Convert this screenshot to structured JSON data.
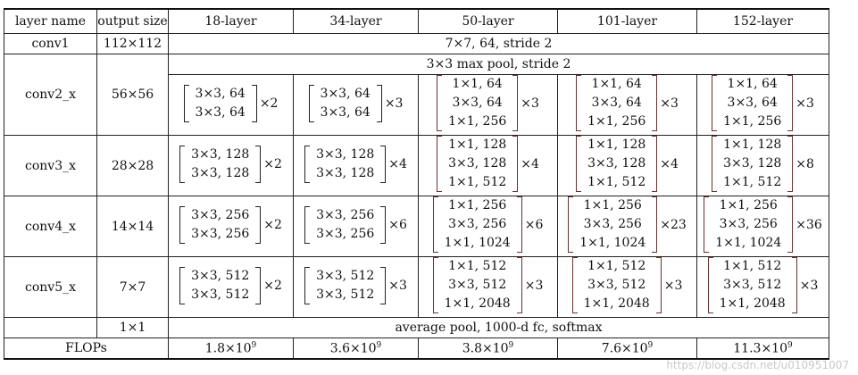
{
  "headers": [
    "layer name",
    "output size",
    "18-layer",
    "34-layer",
    "50-layer",
    "101-layer",
    "152-layer"
  ],
  "conv1": {
    "name": "conv1",
    "size": "112×112",
    "spec": "7×7, 64, stride 2"
  },
  "maxpool": "3×3 max pool, stride 2",
  "blocks": [
    {
      "name": "conv2_x",
      "size": "56×56",
      "cells": [
        {
          "lines": [
            "3×3, 64",
            "3×3, 64"
          ],
          "mult": "×2"
        },
        {
          "lines": [
            "3×3, 64",
            "3×3, 64"
          ],
          "mult": "×3"
        },
        {
          "lines": [
            "1×1, 64",
            "3×3, 64",
            "1×1, 256"
          ],
          "mult": "×3"
        },
        {
          "lines": [
            "1×1, 64",
            "3×3, 64",
            "1×1, 256"
          ],
          "mult": "×3"
        },
        {
          "lines": [
            "1×1, 64",
            "3×3, 64",
            "1×1, 256"
          ],
          "mult": "×3"
        }
      ]
    },
    {
      "name": "conv3_x",
      "size": "28×28",
      "cells": [
        {
          "lines": [
            "3×3, 128",
            "3×3, 128"
          ],
          "mult": "×2"
        },
        {
          "lines": [
            "3×3, 128",
            "3×3, 128"
          ],
          "mult": "×4"
        },
        {
          "lines": [
            "1×1, 128",
            "3×3, 128",
            "1×1, 512"
          ],
          "mult": "×4"
        },
        {
          "lines": [
            "1×1, 128",
            "3×3, 128",
            "1×1, 512"
          ],
          "mult": "×4"
        },
        {
          "lines": [
            "1×1, 128",
            "3×3, 128",
            "1×1, 512"
          ],
          "mult": "×8"
        }
      ]
    },
    {
      "name": "conv4_x",
      "size": "14×14",
      "cells": [
        {
          "lines": [
            "3×3, 256",
            "3×3, 256"
          ],
          "mult": "×2"
        },
        {
          "lines": [
            "3×3, 256",
            "3×3, 256"
          ],
          "mult": "×6"
        },
        {
          "lines": [
            "1×1, 256",
            "3×3, 256",
            "1×1, 1024"
          ],
          "mult": "×6"
        },
        {
          "lines": [
            "1×1, 256",
            "3×3, 256",
            "1×1, 1024"
          ],
          "mult": "×23"
        },
        {
          "lines": [
            "1×1, 256",
            "3×3, 256",
            "1×1, 1024"
          ],
          "mult": "×36"
        }
      ]
    },
    {
      "name": "conv5_x",
      "size": "7×7",
      "cells": [
        {
          "lines": [
            "3×3, 512",
            "3×3, 512"
          ],
          "mult": "×2"
        },
        {
          "lines": [
            "3×3, 512",
            "3×3, 512"
          ],
          "mult": "×3"
        },
        {
          "lines": [
            "1×1, 512",
            "3×3, 512",
            "1×1, 2048"
          ],
          "mult": "×3"
        },
        {
          "lines": [
            "1×1, 512",
            "3×3, 512",
            "1×1, 2048"
          ],
          "mult": "×3"
        },
        {
          "lines": [
            "1×1, 512",
            "3×3, 512",
            "1×1, 2048"
          ],
          "mult": "×3"
        }
      ]
    }
  ],
  "final": {
    "size": "1×1",
    "spec": "average pool, 1000-d fc, softmax"
  },
  "flops": {
    "label": "FLOPs",
    "values": [
      {
        "base": "1.8×10",
        "exp": "9"
      },
      {
        "base": "3.6×10",
        "exp": "9"
      },
      {
        "base": "3.8×10",
        "exp": "9"
      },
      {
        "base": "7.6×10",
        "exp": "9"
      },
      {
        "base": "11.3×10",
        "exp": "9"
      }
    ]
  },
  "watermark": "https://blog.csdn.net/u010951007"
}
